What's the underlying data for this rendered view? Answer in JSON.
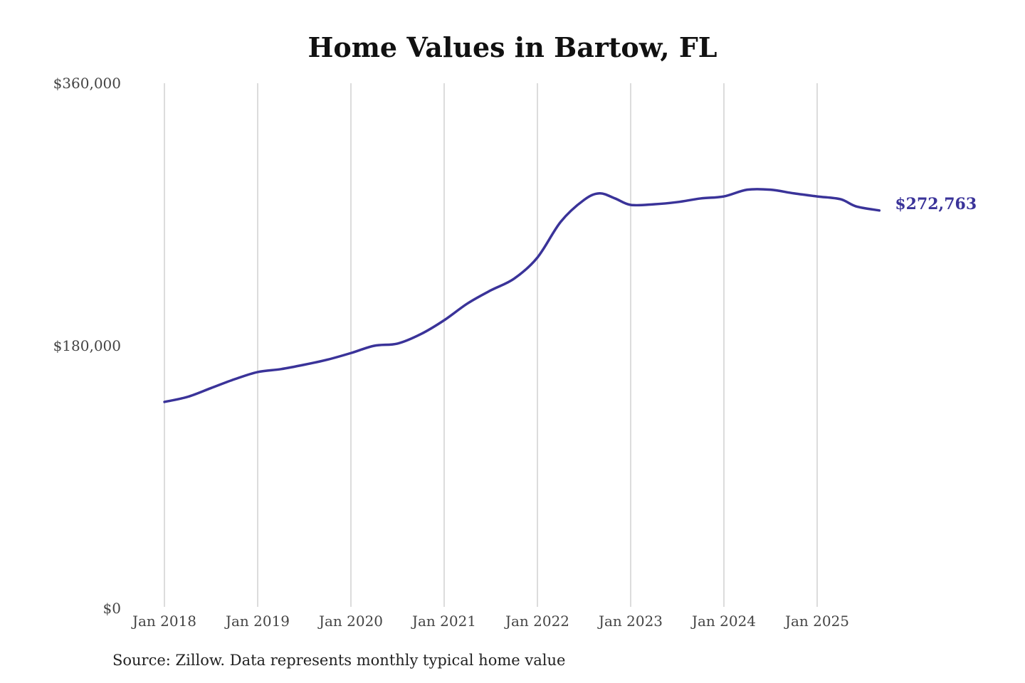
{
  "chart_data": {
    "type": "line",
    "title": "Home Values in Bartow, FL",
    "source": "Source: Zillow. Data represents monthly typical home value",
    "xlabel": "",
    "ylabel": "",
    "ylim": [
      0,
      360000
    ],
    "yticks": [
      0,
      180000,
      360000
    ],
    "ytick_labels": [
      "$0",
      "$180,000",
      "$360,000"
    ],
    "xticks": [
      "2018-01",
      "2019-01",
      "2020-01",
      "2021-01",
      "2022-01",
      "2023-01",
      "2024-01",
      "2025-01"
    ],
    "xtick_labels": [
      "Jan 2018",
      "Jan 2019",
      "Jan 2020",
      "Jan 2021",
      "Jan 2022",
      "Jan 2023",
      "Jan 2024",
      "Jan 2025"
    ],
    "grid": "vertical",
    "line_color": "#3a3399",
    "end_label": "$272,763",
    "series": [
      {
        "x": [
          "2018-01",
          "2018-04",
          "2018-07",
          "2018-10",
          "2019-01",
          "2019-04",
          "2019-07",
          "2019-10",
          "2020-01",
          "2020-04",
          "2020-07",
          "2020-10",
          "2021-01",
          "2021-04",
          "2021-07",
          "2021-10",
          "2022-01",
          "2022-04",
          "2022-07",
          "2022-09",
          "2022-11",
          "2023-01",
          "2023-04",
          "2023-07",
          "2023-10",
          "2024-01",
          "2024-04",
          "2024-07",
          "2024-10",
          "2025-01",
          "2025-04",
          "2025-06",
          "2025-09"
        ],
        "values": [
          141500,
          145000,
          151000,
          157000,
          162000,
          164000,
          167000,
          170500,
          175000,
          180000,
          181500,
          188000,
          197500,
          209000,
          218000,
          226000,
          240500,
          265000,
          280000,
          284500,
          281000,
          276600,
          277000,
          278500,
          281000,
          282400,
          287000,
          287000,
          284500,
          282400,
          280500,
          275600,
          272763
        ]
      }
    ]
  }
}
